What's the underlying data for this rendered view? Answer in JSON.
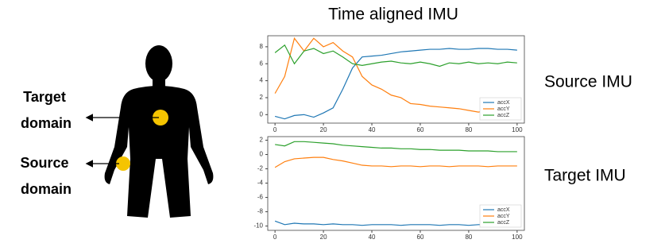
{
  "title": "Time aligned IMU",
  "left_labels": [
    {
      "lines": [
        "Target",
        "domain"
      ]
    },
    {
      "lines": [
        "Source",
        "domain"
      ]
    }
  ],
  "right_labels": [
    "Source IMU",
    "Target IMU"
  ],
  "chart_data": [
    {
      "type": "line",
      "x": [
        0,
        4,
        8,
        12,
        16,
        20,
        24,
        28,
        32,
        36,
        40,
        44,
        48,
        52,
        56,
        60,
        64,
        68,
        72,
        76,
        80,
        84,
        88,
        92,
        96,
        100
      ],
      "xlim": [
        -3,
        103
      ],
      "xticks": [
        0,
        20,
        40,
        60,
        80,
        100
      ],
      "ylim": [
        -1,
        9.3
      ],
      "yticks": [
        0,
        2,
        4,
        6,
        8
      ],
      "legend": "lower right",
      "series": [
        {
          "name": "accX",
          "color": "#1f77b4",
          "values": [
            -0.2,
            -0.5,
            -0.1,
            0.0,
            -0.3,
            0.2,
            0.8,
            3.0,
            5.5,
            6.8,
            6.9,
            7.0,
            7.2,
            7.4,
            7.5,
            7.6,
            7.7,
            7.7,
            7.8,
            7.7,
            7.7,
            7.8,
            7.8,
            7.7,
            7.7,
            7.6
          ]
        },
        {
          "name": "accY",
          "color": "#ff7f0e",
          "values": [
            2.5,
            4.5,
            9.0,
            7.5,
            9.0,
            8.0,
            8.5,
            7.5,
            6.8,
            4.5,
            3.5,
            3.0,
            2.3,
            2.0,
            1.3,
            1.2,
            1.0,
            0.9,
            0.8,
            0.7,
            0.5,
            0.3,
            0.5,
            0.6,
            0.4,
            0.6
          ]
        },
        {
          "name": "accZ",
          "color": "#2ca02c",
          "values": [
            7.3,
            8.2,
            6.0,
            7.5,
            7.8,
            7.2,
            7.5,
            6.8,
            6.0,
            5.8,
            6.0,
            6.2,
            6.3,
            6.1,
            6.0,
            6.2,
            6.0,
            5.7,
            6.1,
            6.0,
            6.2,
            6.0,
            6.1,
            6.0,
            6.2,
            6.1
          ]
        }
      ]
    },
    {
      "type": "line",
      "x": [
        0,
        4,
        8,
        12,
        16,
        20,
        24,
        28,
        32,
        36,
        40,
        44,
        48,
        52,
        56,
        60,
        64,
        68,
        72,
        76,
        80,
        84,
        88,
        92,
        96,
        100
      ],
      "xlim": [
        -3,
        103
      ],
      "xticks": [
        0,
        20,
        40,
        60,
        80,
        100
      ],
      "ylim": [
        -10.6,
        2.5
      ],
      "yticks": [
        2,
        0,
        -2,
        -4,
        -6,
        -8,
        -10
      ],
      "legend": "lower right",
      "series": [
        {
          "name": "accX",
          "color": "#1f77b4",
          "values": [
            -9.3,
            -9.8,
            -9.6,
            -9.7,
            -9.7,
            -9.8,
            -9.7,
            -9.8,
            -9.8,
            -9.9,
            -9.8,
            -9.8,
            -9.8,
            -9.9,
            -9.8,
            -9.8,
            -9.8,
            -9.9,
            -9.8,
            -9.8,
            -9.9,
            -9.8,
            -9.8,
            -9.8,
            -9.9,
            -9.8
          ]
        },
        {
          "name": "accY",
          "color": "#ff7f0e",
          "values": [
            -1.8,
            -1.0,
            -0.6,
            -0.5,
            -0.4,
            -0.4,
            -0.7,
            -0.9,
            -1.2,
            -1.5,
            -1.6,
            -1.6,
            -1.7,
            -1.6,
            -1.6,
            -1.7,
            -1.6,
            -1.6,
            -1.7,
            -1.6,
            -1.6,
            -1.6,
            -1.7,
            -1.6,
            -1.6,
            -1.6
          ]
        },
        {
          "name": "accZ",
          "color": "#2ca02c",
          "values": [
            1.4,
            1.2,
            1.8,
            1.8,
            1.7,
            1.6,
            1.5,
            1.3,
            1.2,
            1.1,
            1.0,
            0.9,
            0.9,
            0.8,
            0.8,
            0.7,
            0.7,
            0.6,
            0.6,
            0.6,
            0.5,
            0.5,
            0.5,
            0.4,
            0.4,
            0.4
          ]
        }
      ]
    }
  ]
}
